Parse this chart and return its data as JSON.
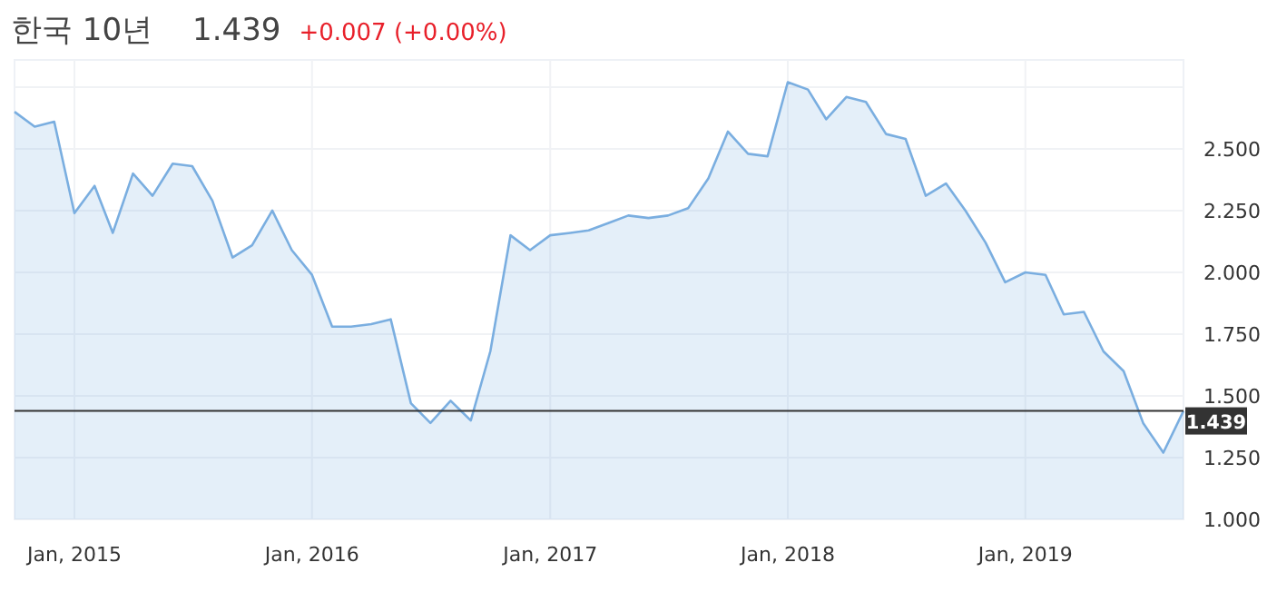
{
  "chart_data": {
    "type": "area",
    "title": "한국 10년",
    "annotations": [
      "1.439",
      "+0.007 (+0.00%)"
    ],
    "x": [
      "2014-10",
      "2014-11",
      "2014-12",
      "2015-01",
      "2015-02",
      "2015-03",
      "2015-04",
      "2015-05",
      "2015-06",
      "2015-07",
      "2015-08",
      "2015-09",
      "2015-10",
      "2015-11",
      "2015-12",
      "2016-01",
      "2016-02",
      "2016-03",
      "2016-04",
      "2016-05",
      "2016-06",
      "2016-07",
      "2016-08",
      "2016-09",
      "2016-10",
      "2016-11",
      "2016-12",
      "2017-01",
      "2017-02",
      "2017-03",
      "2017-04",
      "2017-05",
      "2017-06",
      "2017-07",
      "2017-08",
      "2017-09",
      "2017-10",
      "2017-11",
      "2017-12",
      "2018-01",
      "2018-02",
      "2018-03",
      "2018-04",
      "2018-05",
      "2018-06",
      "2018-07",
      "2018-08",
      "2018-09",
      "2018-10",
      "2018-11",
      "2018-12",
      "2019-01",
      "2019-02",
      "2019-03",
      "2019-04",
      "2019-05",
      "2019-06",
      "2019-07",
      "2019-08",
      "2019-09"
    ],
    "series": [
      {
        "color": "#7aaee0",
        "values": [
          2.65,
          2.59,
          2.61,
          2.24,
          2.35,
          2.16,
          2.4,
          2.31,
          2.44,
          2.43,
          2.29,
          2.06,
          2.11,
          2.25,
          2.09,
          1.99,
          1.78,
          1.78,
          1.79,
          1.81,
          1.47,
          1.39,
          1.48,
          1.4,
          1.68,
          2.15,
          2.09,
          2.15,
          2.16,
          2.17,
          2.2,
          2.23,
          2.22,
          2.23,
          2.26,
          2.38,
          2.57,
          2.48,
          2.47,
          2.77,
          2.74,
          2.62,
          2.71,
          2.69,
          2.56,
          2.54,
          2.31,
          2.36,
          2.25,
          2.12,
          1.96,
          2.0,
          1.99,
          1.83,
          1.84,
          1.68,
          1.6,
          1.39,
          1.27,
          1.439
        ]
      }
    ],
    "xlim": [
      "2014-10",
      "2019-09"
    ],
    "ylim": [
      1,
      2.86
    ],
    "xticks": [
      {
        "value": "2015-01",
        "label": "Jan, 2015"
      },
      {
        "value": "2016-01",
        "label": "Jan, 2016"
      },
      {
        "value": "2017-01",
        "label": "Jan, 2017"
      },
      {
        "value": "2018-01",
        "label": "Jan, 2018"
      },
      {
        "value": "2019-01",
        "label": "Jan, 2019"
      }
    ],
    "yticks": [
      {
        "value": 1,
        "label": "1.000"
      },
      {
        "value": 1.25,
        "label": "1.250"
      },
      {
        "value": 1.5,
        "label": "1.500"
      },
      {
        "value": 1.75,
        "label": "1.750"
      },
      {
        "value": 2,
        "label": "2.000"
      },
      {
        "value": 2.25,
        "label": "2.250"
      },
      {
        "value": 2.5,
        "label": "2.500"
      },
      {
        "value": 2.75,
        "label": null
      }
    ],
    "grid": true,
    "ref_lines": [
      {
        "axis": "y",
        "value": 1.439,
        "label": "1.439",
        "color": "#333333"
      }
    ]
  }
}
